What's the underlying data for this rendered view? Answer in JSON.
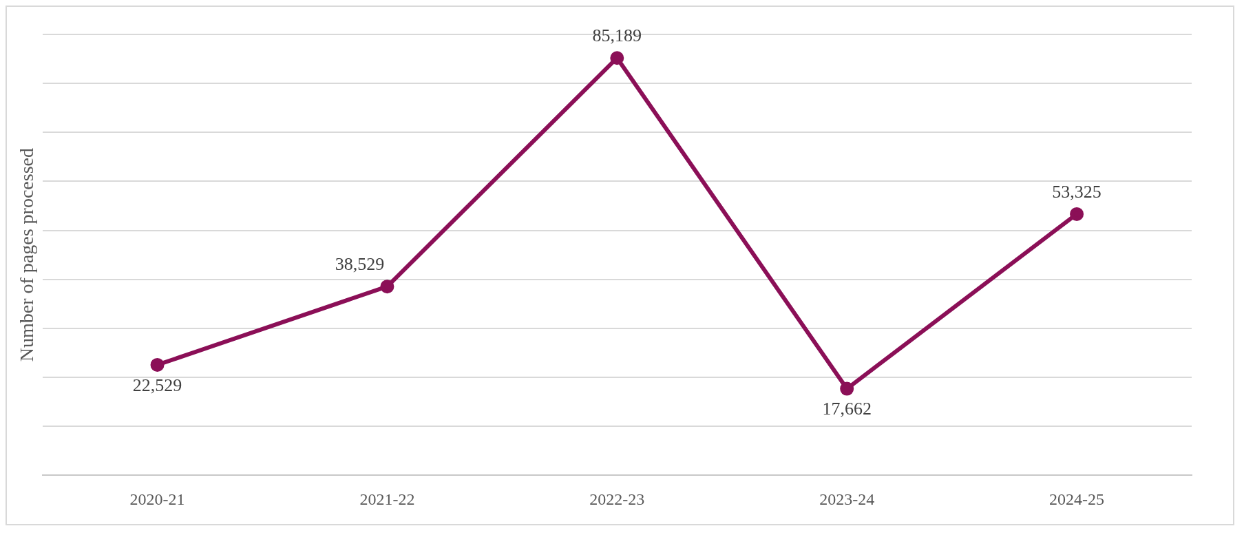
{
  "chart_data": {
    "type": "line",
    "ylabel": "Number of pages processed",
    "categories": [
      "2020-21",
      "2021-22",
      "2022-23",
      "2023-24",
      "2024-25"
    ],
    "series": [
      {
        "color": "#8b0f57",
        "values": [
          22529,
          38529,
          85189,
          17662,
          53325
        ],
        "value_labels": [
          "22,529",
          "38,529",
          "85,189",
          "17,662",
          "53,325"
        ]
      }
    ],
    "tick_labels": "x",
    "grid": "y",
    "legend": false,
    "marker": "circle",
    "line_style": "solid"
  }
}
